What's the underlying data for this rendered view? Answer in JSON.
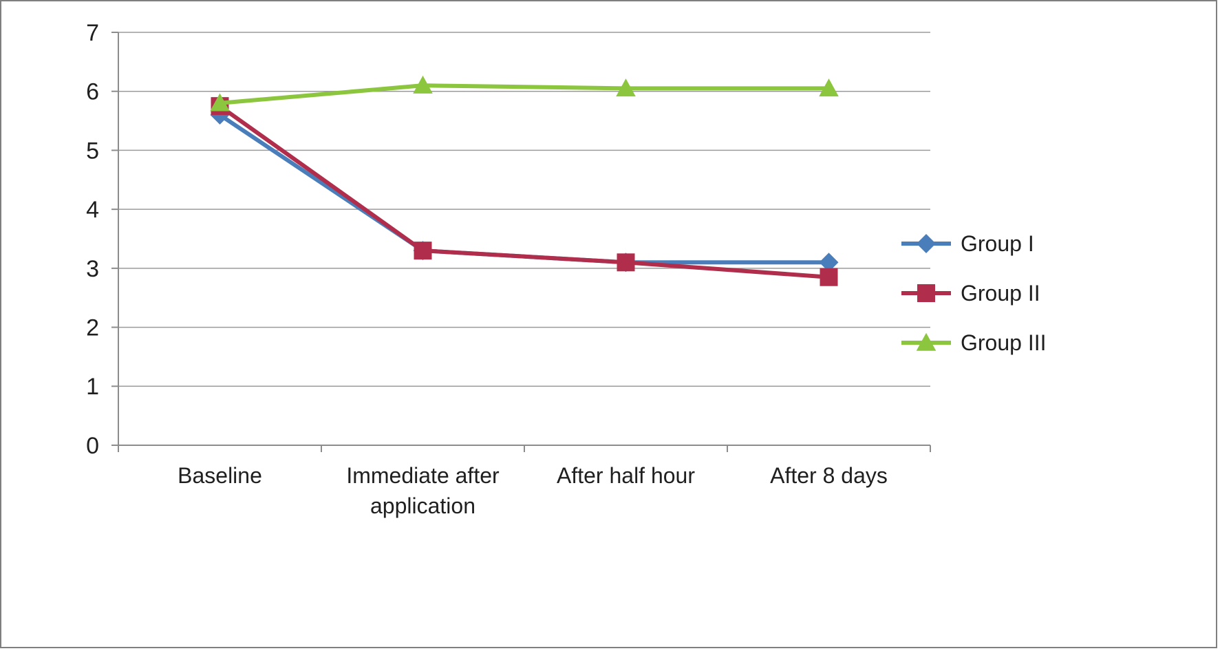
{
  "chart_data": {
    "type": "line",
    "title": "",
    "xlabel": "",
    "ylabel": "",
    "categories": [
      "Baseline",
      "Immediate after\napplication",
      "After half hour",
      "After 8 days"
    ],
    "series": [
      {
        "name": "Group I",
        "marker": "diamond",
        "color": "#4a7ebb",
        "values": [
          5.6,
          3.3,
          3.1,
          3.1
        ]
      },
      {
        "name": "Group II",
        "marker": "square",
        "color": "#b02e4b",
        "values": [
          5.75,
          3.3,
          3.1,
          2.85
        ]
      },
      {
        "name": "Group III",
        "marker": "triangle",
        "color": "#8cc63e",
        "values": [
          5.8,
          6.1,
          6.05,
          6.05
        ]
      }
    ],
    "ylim": [
      0,
      7
    ],
    "ytick_step": 1,
    "yticks": [
      "0",
      "1",
      "2",
      "3",
      "4",
      "5",
      "6",
      "7"
    ],
    "grid": true,
    "legend_position": "right",
    "legend": [
      "Group I",
      "Group II",
      "Group III"
    ]
  },
  "style": {
    "grid_color": "#9b9b9b",
    "axis_color": "#8c8c8c",
    "text_color": "#1f1f1f",
    "background": "#ffffff",
    "frame_border": "#7f7f7f"
  }
}
